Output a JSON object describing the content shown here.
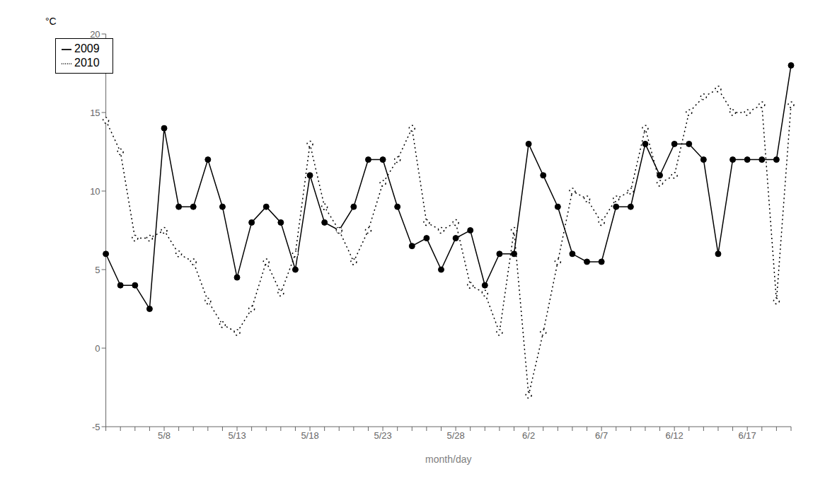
{
  "chart_data": {
    "type": "line",
    "xlabel": "month/day",
    "ylabel": "°C",
    "categories": [
      null,
      null,
      null,
      null,
      "5/8",
      null,
      null,
      null,
      null,
      "5/13",
      null,
      null,
      null,
      null,
      "5/18",
      null,
      null,
      null,
      null,
      "5/23",
      null,
      null,
      null,
      null,
      "5/28",
      null,
      null,
      null,
      null,
      "6/2",
      null,
      null,
      null,
      null,
      "6/7",
      null,
      null,
      null,
      null,
      "6/12",
      null,
      null,
      null,
      null,
      "6/17",
      null,
      null,
      null
    ],
    "series": [
      {
        "name": "2009",
        "color": "#000000",
        "line_style": "solid",
        "marker": "filled_circle",
        "values": [
          6,
          4,
          4,
          2.5,
          14,
          9,
          9,
          12,
          9,
          4.5,
          8,
          9,
          8,
          5,
          11,
          8,
          7.5,
          9,
          12,
          12,
          9,
          6.5,
          7,
          5,
          7,
          7.5,
          4,
          6,
          6,
          13,
          11,
          9,
          6,
          5.5,
          5.5,
          9,
          9,
          13,
          11,
          13,
          13,
          12,
          6,
          12,
          12,
          12,
          12,
          18
        ]
      },
      {
        "name": "2010",
        "color": "#000000",
        "line_style": "dotted",
        "marker": "open_circle",
        "values": [
          14.5,
          12.5,
          7,
          7,
          7.5,
          6,
          5.5,
          3,
          1.5,
          1,
          2.5,
          5.5,
          3.5,
          6,
          13,
          9,
          7.5,
          5.5,
          7.5,
          10.5,
          12,
          14,
          8,
          7.5,
          8,
          4,
          3.5,
          1,
          7.5,
          -3,
          1,
          5.5,
          10,
          9.5,
          8,
          9.5,
          10,
          14,
          10.5,
          11,
          15,
          16,
          16.5,
          15,
          15,
          15.5,
          3,
          15.5
        ]
      }
    ],
    "ylim": [
      -5,
      20
    ],
    "yticks": [
      -5,
      0,
      5,
      10,
      15,
      20
    ],
    "grid": false,
    "legend": "upper left"
  }
}
